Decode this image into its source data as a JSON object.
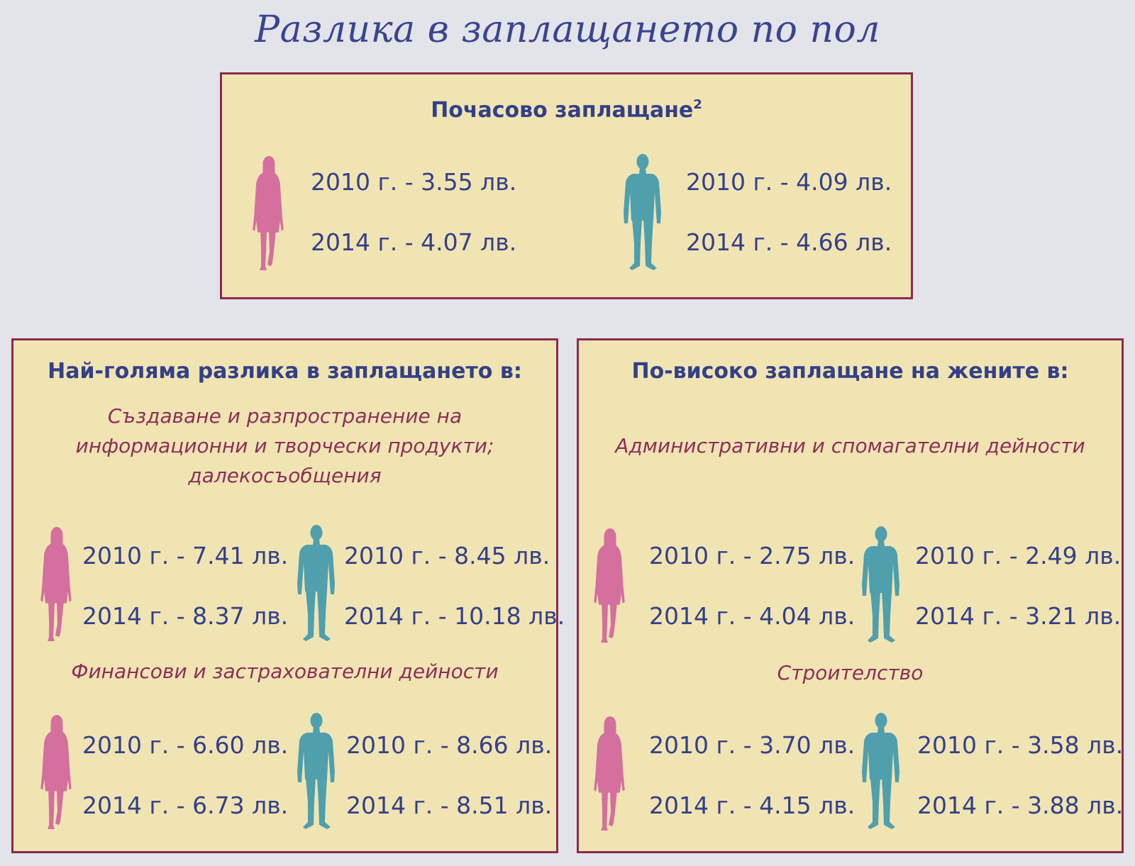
{
  "title": "Разлика в заплащането по пол",
  "colors": {
    "background": "#e2e4e9",
    "panel": "#f1e4b3",
    "border": "#8c2a4e",
    "heading": "#334088",
    "subheading": "#8c2f57",
    "female": "#d46f9e",
    "male": "#4f9fad"
  },
  "hourly": {
    "heading": "Почасово заплащане",
    "footnote": "2",
    "female_icon": "woman-silhouette-icon",
    "male_icon": "man-silhouette-icon",
    "female": [
      "2010 г. - 3.55 лв.",
      "2014 г. - 4.07 лв."
    ],
    "male": [
      "2010 г. - 4.09 лв.",
      "2014 г. - 4.66 лв."
    ]
  },
  "biggest_gap": {
    "heading": "Най-голяма разлика в заплащането в:",
    "sectors": [
      {
        "name": [
          "Създаване и разпространение на",
          "информационни и творчески продукти;",
          "далекосъобщения"
        ],
        "female": [
          "2010 г. - 7.41 лв.",
          "2014 г. - 8.37 лв."
        ],
        "male": [
          "2010 г. - 8.45 лв.",
          "2014 г. - 10.18 лв."
        ]
      },
      {
        "name": [
          "Финансови и застрахователни дейности"
        ],
        "female": [
          "2010 г. - 6.60 лв.",
          "2014 г. - 6.73 лв."
        ],
        "male": [
          "2010 г. - 8.66 лв.",
          "2014 г. - 8.51 лв."
        ]
      }
    ]
  },
  "women_higher": {
    "heading": "По-високо заплащане на жените в:",
    "sectors": [
      {
        "name": [
          "Административни и спомагателни дейности"
        ],
        "female": [
          "2010 г. - 2.75 лв.",
          "2014 г. - 4.04 лв."
        ],
        "male": [
          "2010 г. - 2.49 лв.",
          "2014 г. - 3.21 лв."
        ]
      },
      {
        "name": [
          "Строителство"
        ],
        "female": [
          "2010 г. - 3.70 лв.",
          "2014 г. - 4.15 лв."
        ],
        "male": [
          "2010 г. - 3.58 лв.",
          "2014 г. - 3.88 лв."
        ]
      }
    ]
  }
}
